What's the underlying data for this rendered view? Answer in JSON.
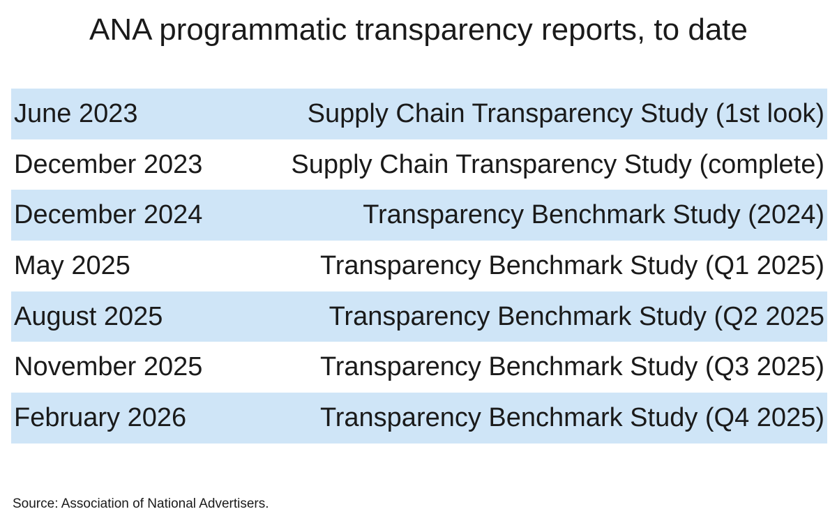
{
  "header": {
    "title": "ANA programmatic transparency reports, to date"
  },
  "table": {
    "rows": [
      [
        "June 2023",
        "Supply Chain Transparency Study (1st look)"
      ],
      [
        "December 2023",
        "Supply Chain Transparency Study (complete)"
      ],
      [
        "December 2024",
        "Transparency Benchmark Study (2024)"
      ],
      [
        "May 2025",
        "Transparency Benchmark Study (Q1 2025)"
      ],
      [
        "August 2025",
        "Transparency Benchmark Study (Q2 2025"
      ],
      [
        "November 2025",
        "Transparency Benchmark Study (Q3 2025)"
      ],
      [
        "February 2026",
        "Transparency Benchmark Study (Q4 2025)"
      ]
    ]
  },
  "footer": {
    "source": "Source: Association of National Advertisers."
  }
}
